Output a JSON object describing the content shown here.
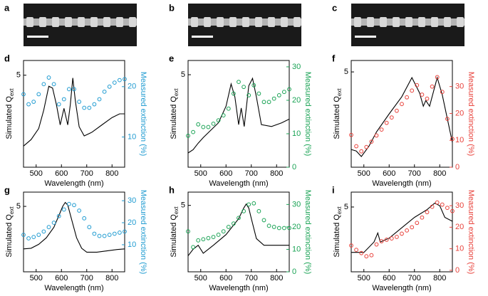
{
  "images": [
    {
      "label": "a"
    },
    {
      "label": "b"
    },
    {
      "label": "c"
    }
  ],
  "chart_data": [
    {
      "type": "line",
      "panel_label": "d",
      "xlabel": "Wavelength (nm)",
      "ylabel": {
        "text": "Simulated Q",
        "subscript": "ext"
      },
      "y2label": "Measured extinction (%)",
      "xlim": [
        450,
        850
      ],
      "xticks": [
        500,
        600,
        700,
        800
      ],
      "ylim": [
        0,
        5.8
      ],
      "yticks": [
        5
      ],
      "y2lim": [
        4,
        25.2
      ],
      "y2ticks": [
        10,
        20
      ],
      "y2color": "#1f9bd1",
      "series": [
        {
          "color": "#000000",
          "x": [
            450,
            480,
            510,
            530,
            550,
            565,
            580,
            595,
            610,
            625,
            635,
            645,
            655,
            670,
            690,
            720,
            760,
            800,
            830,
            850
          ],
          "values": [
            1.15,
            1.5,
            2.1,
            3.1,
            4.4,
            4.3,
            3.4,
            2.3,
            3.2,
            2.3,
            3.4,
            4.85,
            3.6,
            2.2,
            1.7,
            1.9,
            2.3,
            2.7,
            2.9,
            2.9
          ]
        },
        {
          "color": "#1f9bd1",
          "axis": "y2",
          "marker": "circle",
          "x": [
            450,
            470,
            490,
            510,
            530,
            550,
            570,
            590,
            610,
            630,
            650,
            670,
            690,
            710,
            730,
            750,
            770,
            790,
            810,
            830,
            850
          ],
          "values": [
            18.5,
            16.5,
            17,
            18.5,
            20.5,
            21.8,
            20.5,
            16.5,
            17.5,
            19.5,
            19.5,
            17,
            15.8,
            15.8,
            16.5,
            17.5,
            19,
            20,
            20.8,
            21.3,
            21.5
          ]
        }
      ]
    },
    {
      "type": "line",
      "panel_label": "e",
      "xlabel": "Wavelength (nm)",
      "ylabel": {
        "text": "Simulated Q",
        "subscript": "ext"
      },
      "y2label": "Measured extinction (%)",
      "xlim": [
        450,
        850
      ],
      "xticks": [
        500,
        600,
        700,
        800
      ],
      "ylim": [
        0,
        5.77
      ],
      "yticks": [
        5
      ],
      "y2lim": [
        0,
        31.9
      ],
      "y2ticks": [
        0,
        10,
        20,
        30
      ],
      "y2color": "#1aa355",
      "series": [
        {
          "color": "#000000",
          "x": [
            450,
            470,
            490,
            510,
            540,
            570,
            600,
            620,
            635,
            650,
            660,
            672,
            690,
            705,
            720,
            740,
            780,
            820,
            850
          ],
          "values": [
            0.77,
            0.95,
            1.3,
            1.6,
            2.0,
            2.4,
            3.3,
            4.5,
            3.8,
            2.3,
            3.2,
            2.2,
            4.4,
            4.8,
            3.8,
            2.3,
            2.2,
            2.4,
            2.6
          ]
        },
        {
          "color": "#1aa355",
          "axis": "y2",
          "marker": "circle",
          "x": [
            450,
            470,
            490,
            510,
            530,
            550,
            570,
            590,
            610,
            630,
            650,
            670,
            690,
            710,
            730,
            750,
            770,
            790,
            810,
            830,
            850
          ],
          "values": [
            9.4,
            10.5,
            12.8,
            12,
            12,
            13,
            14,
            15.5,
            17.5,
            22,
            25.5,
            24,
            21.5,
            24.5,
            22,
            19.5,
            19.5,
            20.5,
            21.5,
            22.5,
            23.3
          ]
        }
      ]
    },
    {
      "type": "line",
      "panel_label": "f",
      "xlabel": "Wavelength (nm)",
      "ylabel": {
        "text": "Simulated Q",
        "subscript": "ext"
      },
      "y2label": "Measured extinction (%)",
      "xlim": [
        450,
        850
      ],
      "xticks": [
        500,
        600,
        700,
        800
      ],
      "ylim": [
        0,
        5.6
      ],
      "yticks": [
        5
      ],
      "y2lim": [
        0,
        39.7
      ],
      "y2ticks": [
        0,
        10,
        20,
        30
      ],
      "y2color": "#e8413a",
      "series": [
        {
          "color": "#000000",
          "x": [
            450,
            470,
            490,
            520,
            550,
            600,
            650,
            690,
            720,
            735,
            745,
            760,
            790,
            810,
            850
          ],
          "values": [
            0.93,
            0.85,
            0.56,
            1.1,
            1.85,
            2.8,
            3.7,
            4.7,
            3.9,
            3.2,
            3.5,
            3.2,
            4.7,
            3.8,
            1.3
          ]
        },
        {
          "color": "#e8413a",
          "axis": "y2",
          "marker": "circle",
          "x": [
            450,
            470,
            490,
            510,
            530,
            550,
            570,
            590,
            610,
            630,
            650,
            670,
            690,
            710,
            730,
            750,
            770,
            790,
            810,
            830,
            850
          ],
          "values": [
            12,
            7.8,
            5.9,
            7.5,
            9.5,
            11.8,
            14,
            16.5,
            18.5,
            21,
            23.5,
            26,
            28.5,
            30.5,
            27,
            25.5,
            30,
            33.5,
            28,
            18,
            10.5
          ]
        }
      ]
    },
    {
      "type": "line",
      "panel_label": "g",
      "xlabel": "Wavelength (nm)",
      "ylabel": {
        "text": "Simulated Q",
        "subscript": "ext"
      },
      "y2label": "Measured extinction (%)",
      "xlim": [
        450,
        850
      ],
      "xticks": [
        500,
        600,
        700,
        800
      ],
      "ylim": [
        0,
        6.09
      ],
      "yticks": [
        5
      ],
      "y2lim": [
        -2.3,
        33.9
      ],
      "y2ticks": [
        10,
        20,
        30
      ],
      "y2color": "#1f9bd1",
      "series": [
        {
          "color": "#000000",
          "x": [
            450,
            480,
            510,
            540,
            570,
            590,
            605,
            615,
            625,
            640,
            660,
            680,
            700,
            740,
            780,
            820,
            850
          ],
          "values": [
            1.75,
            1.8,
            2.1,
            2.6,
            3.4,
            4.3,
            5.0,
            5.3,
            5.1,
            4.0,
            2.6,
            1.8,
            1.5,
            1.5,
            1.6,
            1.7,
            1.75
          ]
        },
        {
          "color": "#1f9bd1",
          "axis": "y2",
          "marker": "circle",
          "x": [
            450,
            470,
            490,
            510,
            530,
            550,
            570,
            590,
            610,
            630,
            650,
            670,
            690,
            710,
            730,
            750,
            770,
            790,
            810,
            830,
            850
          ],
          "values": [
            14.5,
            12.9,
            13.5,
            14.5,
            16,
            18,
            20,
            23,
            26,
            28.5,
            28,
            25.5,
            22,
            18,
            15,
            14,
            14,
            14.5,
            15,
            15.5,
            16
          ]
        }
      ]
    },
    {
      "type": "line",
      "panel_label": "h",
      "xlabel": "Wavelength (nm)",
      "ylabel": {
        "text": "Simulated Q",
        "subscript": "ext"
      },
      "y2label": "Measured extinction (%)",
      "xlim": [
        450,
        850
      ],
      "xticks": [
        500,
        600,
        700,
        800
      ],
      "ylim": [
        0,
        6.0
      ],
      "yticks": [
        5
      ],
      "y2lim": [
        0,
        35.5
      ],
      "y2ticks": [
        0,
        10,
        20,
        30
      ],
      "y2color": "#1aa355",
      "series": [
        {
          "color": "#000000",
          "x": [
            450,
            470,
            490,
            510,
            550,
            600,
            650,
            670,
            680,
            690,
            700,
            720,
            750,
            800,
            850
          ],
          "values": [
            1.2,
            1.7,
            2.0,
            1.4,
            2.0,
            2.8,
            4.0,
            4.8,
            5.1,
            4.8,
            4.0,
            2.5,
            2.0,
            2.0,
            2.0
          ]
        },
        {
          "color": "#1aa355",
          "axis": "y2",
          "marker": "circle",
          "x": [
            450,
            470,
            490,
            510,
            530,
            550,
            570,
            590,
            610,
            630,
            650,
            670,
            690,
            710,
            730,
            750,
            770,
            790,
            810,
            830,
            850
          ],
          "values": [
            18,
            11,
            14,
            14.5,
            15,
            15.5,
            16.5,
            18,
            20,
            21.5,
            24,
            27,
            30,
            30.5,
            27,
            23,
            20.5,
            20,
            19.5,
            19.5,
            19.5
          ]
        }
      ]
    },
    {
      "type": "line",
      "panel_label": "i",
      "xlabel": "Wavelength (nm)",
      "ylabel": {
        "text": "Simulated Q",
        "subscript": "ext"
      },
      "y2label": "Measured extinction (%)",
      "xlim": [
        450,
        850
      ],
      "xticks": [
        500,
        600,
        700,
        800
      ],
      "ylim": [
        0,
        6.15
      ],
      "yticks": [
        5
      ],
      "y2lim": [
        -0.7,
        36.3
      ],
      "y2ticks": [
        0,
        10,
        20,
        30
      ],
      "y2color": "#e8413a",
      "series": [
        {
          "color": "#000000",
          "x": [
            450,
            500,
            540,
            555,
            565,
            600,
            650,
            700,
            750,
            780,
            800,
            820,
            850
          ],
          "values": [
            1.5,
            1.5,
            2.3,
            3.0,
            2.3,
            2.6,
            3.4,
            4.2,
            4.8,
            5.3,
            5.1,
            4.2,
            3.9
          ]
        },
        {
          "color": "#e8413a",
          "axis": "y2",
          "marker": "circle",
          "x": [
            450,
            470,
            490,
            510,
            530,
            550,
            570,
            590,
            610,
            630,
            650,
            670,
            690,
            710,
            730,
            750,
            770,
            790,
            810,
            830,
            850
          ],
          "values": [
            11.5,
            9.5,
            8,
            6.5,
            7,
            12,
            13.5,
            14.2,
            14.8,
            15.5,
            17,
            18.5,
            20,
            22,
            24.5,
            27,
            29.5,
            31.5,
            30.5,
            29,
            27.5
          ]
        }
      ]
    }
  ]
}
